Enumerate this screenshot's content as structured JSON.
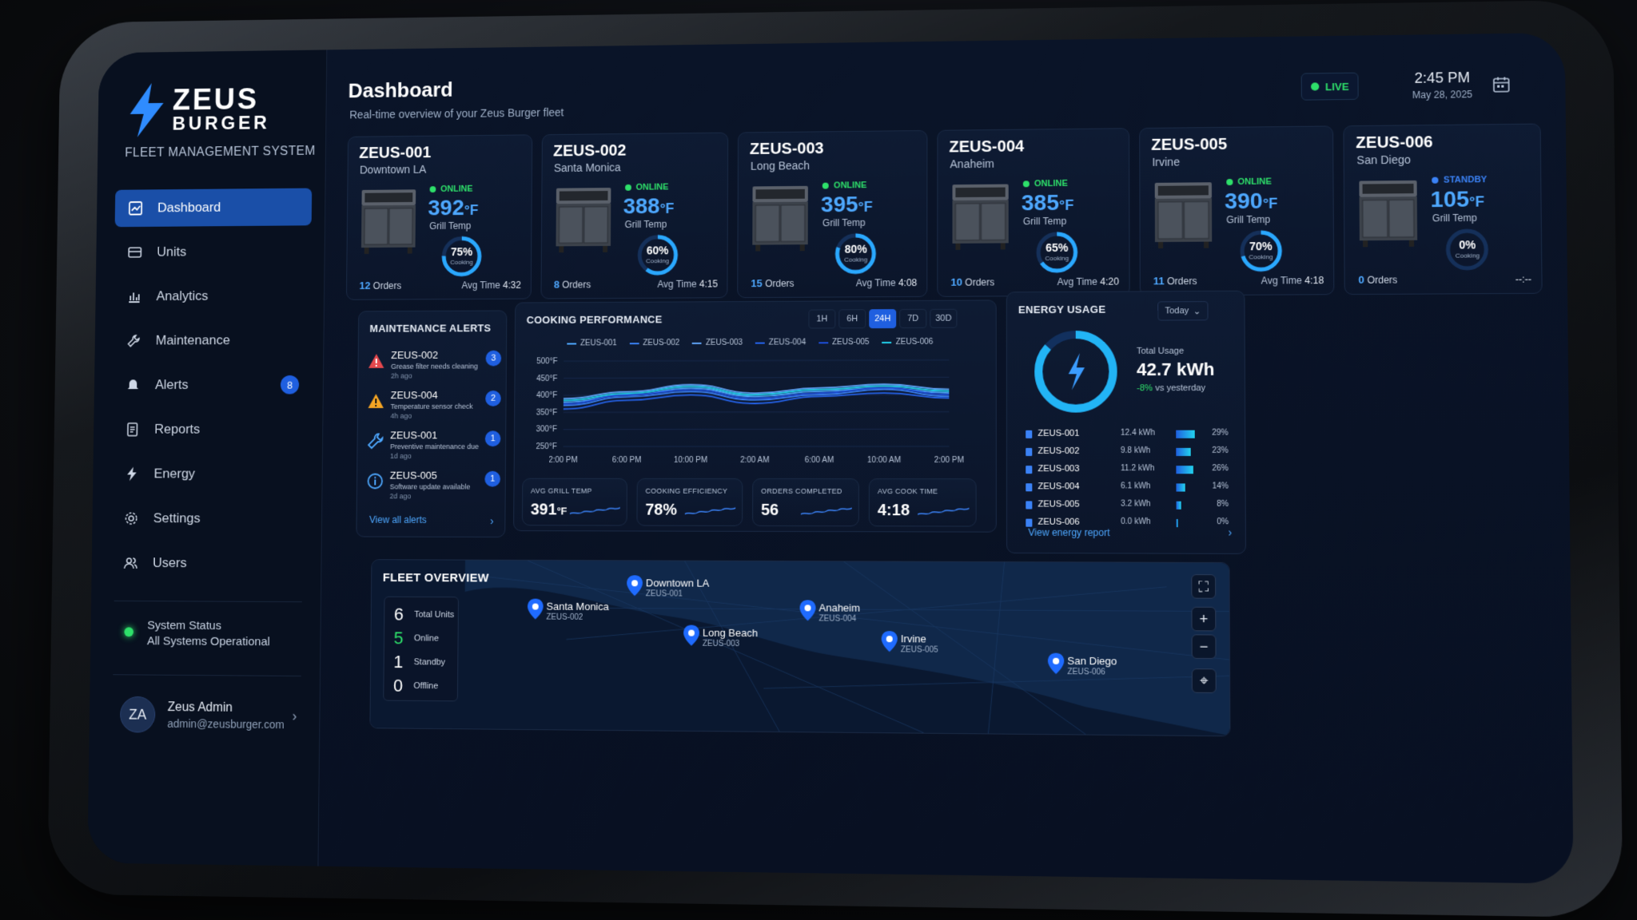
{
  "brand": {
    "name_top": "ZEUS",
    "name_bottom": "BURGER",
    "subtitle": "FLEET MANAGEMENT SYSTEM"
  },
  "sidebar": {
    "items": [
      {
        "label": "Dashboard",
        "icon": "dashboard-icon",
        "active": true
      },
      {
        "label": "Units",
        "icon": "grill-icon"
      },
      {
        "label": "Analytics",
        "icon": "bar-chart-icon"
      },
      {
        "label": "Maintenance",
        "icon": "wrench-icon"
      },
      {
        "label": "Alerts",
        "icon": "bell-icon",
        "badge": "8"
      },
      {
        "label": "Reports",
        "icon": "document-icon"
      },
      {
        "label": "Energy",
        "icon": "bolt-icon"
      },
      {
        "label": "Settings",
        "icon": "gear-icon"
      },
      {
        "label": "Users",
        "icon": "users-icon"
      }
    ],
    "system_status": {
      "title": "System Status",
      "text": "All Systems Operational"
    },
    "user": {
      "initials": "ZA",
      "name": "Zeus Admin",
      "email": "admin@zeusburger.com"
    }
  },
  "header": {
    "title": "Dashboard",
    "subtitle": "Real-time overview of your Zeus Burger fleet",
    "live": "LIVE",
    "time": "2:45 PM",
    "date": "May 28, 2025"
  },
  "units": [
    {
      "id": "ZEUS-001",
      "location": "Downtown LA",
      "status": "ONLINE",
      "temp": "392",
      "unit": "°F",
      "temp_label": "Grill Temp",
      "cooking_pct": 75,
      "cooking_label": "75%",
      "cooking_text": "Cooking",
      "orders": "12",
      "orders_label": "Orders",
      "avg_label": "Avg Time",
      "avg": "4:32"
    },
    {
      "id": "ZEUS-002",
      "location": "Santa Monica",
      "status": "ONLINE",
      "temp": "388",
      "unit": "°F",
      "temp_label": "Grill Temp",
      "cooking_pct": 60,
      "cooking_label": "60%",
      "cooking_text": "Cooking",
      "orders": "8",
      "orders_label": "Orders",
      "avg_label": "Avg Time",
      "avg": "4:15"
    },
    {
      "id": "ZEUS-003",
      "location": "Long Beach",
      "status": "ONLINE",
      "temp": "395",
      "unit": "°F",
      "temp_label": "Grill Temp",
      "cooking_pct": 80,
      "cooking_label": "80%",
      "cooking_text": "Cooking",
      "orders": "15",
      "orders_label": "Orders",
      "avg_label": "Avg Time",
      "avg": "4:08"
    },
    {
      "id": "ZEUS-004",
      "location": "Anaheim",
      "status": "ONLINE",
      "temp": "385",
      "unit": "°F",
      "temp_label": "Grill Temp",
      "cooking_pct": 65,
      "cooking_label": "65%",
      "cooking_text": "Cooking",
      "orders": "10",
      "orders_label": "Orders",
      "avg_label": "Avg Time",
      "avg": "4:20"
    },
    {
      "id": "ZEUS-005",
      "location": "Irvine",
      "status": "ONLINE",
      "temp": "390",
      "unit": "°F",
      "temp_label": "Grill Temp",
      "cooking_pct": 70,
      "cooking_label": "70%",
      "cooking_text": "Cooking",
      "orders": "11",
      "orders_label": "Orders",
      "avg_label": "Avg Time",
      "avg": "4:18"
    },
    {
      "id": "ZEUS-006",
      "location": "San Diego",
      "status": "STANDBY",
      "temp": "105",
      "unit": "°F",
      "temp_label": "Grill Temp",
      "cooking_pct": 0,
      "cooking_label": "0%",
      "cooking_text": "Cooking",
      "orders": "0",
      "orders_label": "Orders",
      "avg_label": "",
      "avg": "--:--"
    }
  ],
  "colors": {
    "online": "#2ee06a",
    "standby": "#3b82f6",
    "accent": "#1f5fe0",
    "warning": "#f5a524",
    "danger": "#e5484d"
  },
  "alerts": {
    "title": "MAINTENANCE ALERTS",
    "items": [
      {
        "unit": "ZEUS-002",
        "desc": "Grease filter needs cleaning",
        "time": "2h ago",
        "count": "3",
        "icon": "warning-red-icon"
      },
      {
        "unit": "ZEUS-004",
        "desc": "Temperature sensor check",
        "time": "4h ago",
        "count": "2",
        "icon": "warning-amber-icon"
      },
      {
        "unit": "ZEUS-001",
        "desc": "Preventive maintenance due",
        "time": "1d ago",
        "count": "1",
        "icon": "wrench-icon"
      },
      {
        "unit": "ZEUS-005",
        "desc": "Software update available",
        "time": "2d ago",
        "count": "1",
        "icon": "info-icon"
      }
    ],
    "link": "View all alerts"
  },
  "performance": {
    "title": "COOKING PERFORMANCE",
    "ranges": [
      "1H",
      "6H",
      "24H",
      "7D",
      "30D"
    ],
    "active_range": "24H",
    "metrics": [
      {
        "title": "AVG GRILL TEMP",
        "value": "391",
        "unit": "°F"
      },
      {
        "title": "COOKING EFFICIENCY",
        "value": "78%",
        "unit": ""
      },
      {
        "title": "ORDERS COMPLETED",
        "value": "56",
        "unit": ""
      },
      {
        "title": "AVG COOK TIME",
        "value": "4:18",
        "unit": ""
      }
    ]
  },
  "chart_data": {
    "type": "line",
    "x": [
      "2:00 PM",
      "6:00 PM",
      "10:00 PM",
      "2:00 AM",
      "6:00 AM",
      "10:00 AM",
      "2:00 PM"
    ],
    "yticks": [
      "500°F",
      "450°F",
      "400°F",
      "350°F",
      "300°F",
      "250°F"
    ],
    "ylim": [
      250,
      500
    ],
    "legend_placement": "top",
    "series": [
      {
        "name": "ZEUS-001",
        "color": "#4ea8ff",
        "values": [
          380,
          400,
          420,
          395,
          410,
          420,
          405
        ]
      },
      {
        "name": "ZEUS-002",
        "color": "#3b82f6",
        "values": [
          370,
          395,
          410,
          385,
          400,
          415,
          395
        ]
      },
      {
        "name": "ZEUS-003",
        "color": "#60a5fa",
        "values": [
          390,
          410,
          430,
          405,
          420,
          430,
          415
        ]
      },
      {
        "name": "ZEUS-004",
        "color": "#2563eb",
        "values": [
          360,
          385,
          400,
          375,
          395,
          405,
          390
        ]
      },
      {
        "name": "ZEUS-005",
        "color": "#1d4ed8",
        "values": [
          375,
          400,
          415,
          390,
          405,
          420,
          400
        ]
      },
      {
        "name": "ZEUS-006",
        "color": "#22d3ee",
        "values": [
          385,
          405,
          425,
          400,
          415,
          425,
          410
        ]
      }
    ]
  },
  "energy": {
    "title": "ENERGY USAGE",
    "period": "Today",
    "total_label": "Total Usage",
    "total": "42.7 kWh",
    "delta": "-8%",
    "delta_text": "vs yesterday",
    "rows": [
      {
        "unit": "ZEUS-001",
        "kwh": "12.4 kWh",
        "pct": "29%",
        "share": 29
      },
      {
        "unit": "ZEUS-002",
        "kwh": "9.8 kWh",
        "pct": "23%",
        "share": 23
      },
      {
        "unit": "ZEUS-003",
        "kwh": "11.2 kWh",
        "pct": "26%",
        "share": 26
      },
      {
        "unit": "ZEUS-004",
        "kwh": "6.1 kWh",
        "pct": "14%",
        "share": 14
      },
      {
        "unit": "ZEUS-005",
        "kwh": "3.2 kWh",
        "pct": "8%",
        "share": 8
      },
      {
        "unit": "ZEUS-006",
        "kwh": "0.0 kWh",
        "pct": "0%",
        "share": 0
      }
    ],
    "link": "View energy report"
  },
  "fleet": {
    "title": "FLEET OVERVIEW",
    "summary": [
      {
        "num": "6",
        "label": "Total Units"
      },
      {
        "num": "5",
        "label": "Online"
      },
      {
        "num": "1",
        "label": "Standby"
      },
      {
        "num": "0",
        "label": "Offline"
      }
    ],
    "pins": [
      {
        "name": "Santa Monica",
        "id": "ZEUS-002"
      },
      {
        "name": "Downtown LA",
        "id": "ZEUS-001"
      },
      {
        "name": "Long Beach",
        "id": "ZEUS-003"
      },
      {
        "name": "Anaheim",
        "id": "ZEUS-004"
      },
      {
        "name": "Irvine",
        "id": "ZEUS-005"
      },
      {
        "name": "San Diego",
        "id": "ZEUS-006"
      }
    ],
    "controls": [
      "fullscreen-icon",
      "zoom-in-icon",
      "zoom-out-icon",
      "locate-icon"
    ]
  }
}
